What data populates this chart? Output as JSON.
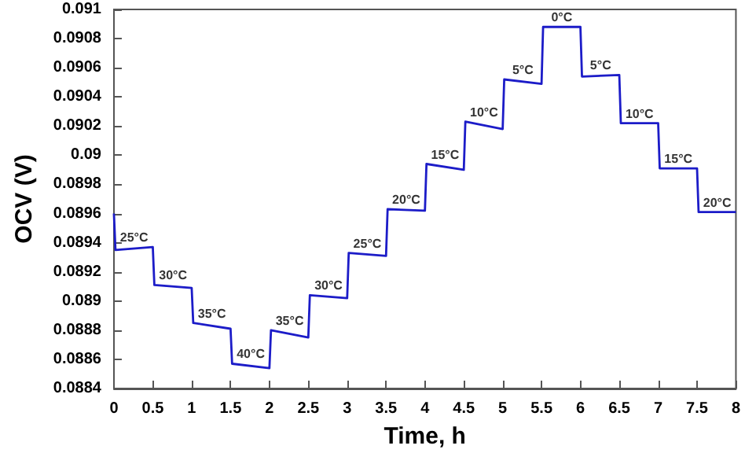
{
  "chart_data": {
    "type": "line",
    "xlabel": "Time, h",
    "ylabel": "OCV (V)",
    "x": [
      0,
      0.02,
      0.5,
      0.52,
      1,
      1.02,
      1.5,
      1.52,
      2,
      2.02,
      2.5,
      2.52,
      3,
      3.02,
      3.5,
      3.52,
      4,
      4.02,
      4.5,
      4.52,
      5,
      5.02,
      5.5,
      5.52,
      6,
      6.02,
      6.5,
      6.52,
      7,
      7.02,
      7.5,
      7.52,
      8
    ],
    "series": [
      {
        "color": "#1c1cc8",
        "values": [
          0.0896,
          0.08935,
          0.08937,
          0.08911,
          0.08909,
          0.08885,
          0.08881,
          0.08857,
          0.08854,
          0.0888,
          0.08875,
          0.08904,
          0.08902,
          0.08933,
          0.08931,
          0.08963,
          0.08962,
          0.08994,
          0.0899,
          0.09023,
          0.09018,
          0.09052,
          0.09049,
          0.09088,
          0.09088,
          0.09054,
          0.09055,
          0.09022,
          0.09022,
          0.08991,
          0.08991,
          0.08961,
          0.08961
        ]
      }
    ],
    "xlim": [
      0,
      8
    ],
    "xticks": [
      0,
      0.5,
      1,
      1.5,
      2,
      2.5,
      3,
      3.5,
      4,
      4.5,
      5,
      5.5,
      6,
      6.5,
      7,
      7.5,
      8
    ],
    "ylim": [
      0.0884,
      0.091
    ],
    "yticks": [
      0.0884,
      0.0886,
      0.0888,
      0.089,
      0.0892,
      0.0894,
      0.0896,
      0.0898,
      0.09,
      0.0902,
      0.0904,
      0.0906,
      0.0908,
      0.091
    ],
    "marker": "none",
    "line_style": "solid",
    "grid": false,
    "annotations": [
      "25°C",
      "30°C",
      "35°C",
      "40°C",
      "35°C",
      "30°C",
      "25°C",
      "20°C",
      "15°C",
      "10°C",
      "5°C",
      "0°C",
      "5°C",
      "10°C",
      "15°C",
      "20°C"
    ]
  }
}
